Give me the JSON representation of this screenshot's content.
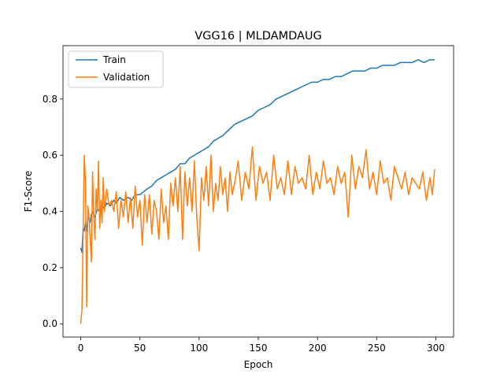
{
  "chart_data": {
    "type": "line",
    "title": "VGG16 | MLDAMDAUG",
    "xlabel": "Epoch",
    "ylabel": "F1-Score",
    "xlim": [
      -15,
      315
    ],
    "ylim": [
      -0.047,
      0.99
    ],
    "xticks": [
      0,
      50,
      100,
      150,
      200,
      250,
      300
    ],
    "yticks": [
      0.0,
      0.2,
      0.4,
      0.6,
      0.8
    ],
    "xtick_labels": [
      "0",
      "50",
      "100",
      "150",
      "200",
      "250",
      "300"
    ],
    "ytick_labels": [
      "0.0",
      "0.2",
      "0.4",
      "0.6",
      "0.8"
    ],
    "grid": false,
    "legend_position": "top-left",
    "series": [
      {
        "name": "Train",
        "color": "#1f77b4",
        "x": [
          0,
          1,
          2,
          3,
          4,
          5,
          6,
          7,
          8,
          9,
          10,
          12,
          14,
          16,
          18,
          20,
          22,
          25,
          28,
          30,
          33,
          36,
          40,
          43,
          46,
          50,
          53,
          56,
          60,
          64,
          68,
          72,
          76,
          80,
          84,
          88,
          92,
          96,
          100,
          104,
          108,
          112,
          116,
          120,
          125,
          130,
          135,
          140,
          145,
          150,
          155,
          160,
          165,
          170,
          175,
          180,
          185,
          190,
          195,
          200,
          205,
          210,
          215,
          220,
          225,
          230,
          235,
          240,
          245,
          250,
          255,
          260,
          265,
          270,
          275,
          280,
          285,
          290,
          295,
          299
        ],
        "y": [
          0.27,
          0.255,
          0.34,
          0.33,
          0.36,
          0.33,
          0.38,
          0.37,
          0.36,
          0.39,
          0.4,
          0.38,
          0.41,
          0.4,
          0.42,
          0.41,
          0.43,
          0.42,
          0.44,
          0.43,
          0.45,
          0.44,
          0.45,
          0.44,
          0.46,
          0.46,
          0.47,
          0.48,
          0.49,
          0.51,
          0.52,
          0.53,
          0.54,
          0.55,
          0.57,
          0.57,
          0.59,
          0.6,
          0.61,
          0.62,
          0.63,
          0.65,
          0.66,
          0.67,
          0.69,
          0.71,
          0.72,
          0.73,
          0.74,
          0.76,
          0.77,
          0.78,
          0.8,
          0.81,
          0.82,
          0.83,
          0.84,
          0.85,
          0.86,
          0.86,
          0.87,
          0.87,
          0.88,
          0.88,
          0.89,
          0.9,
          0.9,
          0.9,
          0.91,
          0.91,
          0.92,
          0.92,
          0.92,
          0.93,
          0.93,
          0.93,
          0.94,
          0.93,
          0.94,
          0.94
        ]
      },
      {
        "name": "Validation",
        "color": "#ff7f0e",
        "x": [
          0,
          1,
          2,
          3,
          4,
          5,
          6,
          7,
          8,
          9,
          10,
          11,
          12,
          13,
          14,
          15,
          16,
          17,
          18,
          19,
          20,
          22,
          24,
          26,
          28,
          30,
          32,
          34,
          36,
          38,
          40,
          42,
          44,
          46,
          48,
          50,
          52,
          54,
          56,
          58,
          60,
          62,
          64,
          66,
          68,
          70,
          72,
          74,
          76,
          78,
          80,
          82,
          84,
          86,
          88,
          90,
          92,
          94,
          96,
          98,
          100,
          102,
          104,
          106,
          108,
          110,
          112,
          114,
          116,
          118,
          120,
          122,
          124,
          126,
          128,
          130,
          133,
          136,
          139,
          142,
          145,
          148,
          151,
          154,
          157,
          160,
          163,
          166,
          169,
          172,
          175,
          178,
          181,
          184,
          187,
          190,
          193,
          196,
          199,
          202,
          205,
          208,
          211,
          214,
          217,
          220,
          223,
          226,
          229,
          232,
          235,
          238,
          241,
          244,
          247,
          250,
          253,
          256,
          259,
          262,
          265,
          268,
          271,
          274,
          277,
          280,
          283,
          286,
          289,
          292,
          295,
          297,
          299
        ],
        "y": [
          0.0,
          0.05,
          0.32,
          0.6,
          0.5,
          0.06,
          0.42,
          0.38,
          0.3,
          0.22,
          0.54,
          0.38,
          0.3,
          0.48,
          0.4,
          0.58,
          0.34,
          0.44,
          0.36,
          0.52,
          0.4,
          0.48,
          0.42,
          0.44,
          0.4,
          0.47,
          0.34,
          0.44,
          0.38,
          0.47,
          0.36,
          0.45,
          0.34,
          0.49,
          0.38,
          0.44,
          0.28,
          0.46,
          0.36,
          0.46,
          0.32,
          0.44,
          0.4,
          0.3,
          0.48,
          0.36,
          0.42,
          0.3,
          0.5,
          0.42,
          0.52,
          0.4,
          0.56,
          0.3,
          0.54,
          0.42,
          0.52,
          0.4,
          0.58,
          0.38,
          0.26,
          0.52,
          0.44,
          0.56,
          0.42,
          0.6,
          0.4,
          0.5,
          0.44,
          0.56,
          0.46,
          0.52,
          0.4,
          0.54,
          0.46,
          0.5,
          0.58,
          0.44,
          0.54,
          0.48,
          0.63,
          0.44,
          0.56,
          0.5,
          0.54,
          0.44,
          0.6,
          0.48,
          0.52,
          0.46,
          0.58,
          0.46,
          0.56,
          0.5,
          0.52,
          0.48,
          0.6,
          0.46,
          0.54,
          0.48,
          0.58,
          0.5,
          0.52,
          0.46,
          0.56,
          0.5,
          0.54,
          0.38,
          0.6,
          0.48,
          0.56,
          0.52,
          0.62,
          0.48,
          0.54,
          0.46,
          0.58,
          0.5,
          0.52,
          0.44,
          0.56,
          0.52,
          0.48,
          0.54,
          0.46,
          0.52,
          0.5,
          0.48,
          0.54,
          0.44,
          0.52,
          0.46,
          0.55
        ]
      }
    ]
  }
}
